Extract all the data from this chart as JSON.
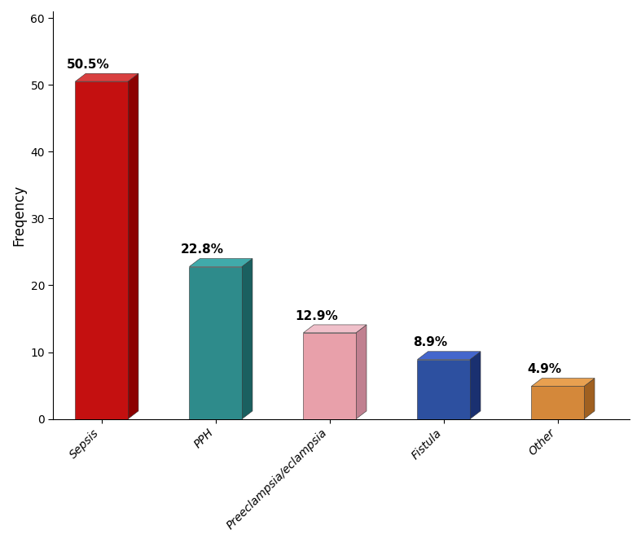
{
  "categories": [
    "Sepsis",
    "PPH",
    "Preeclampsia/eclampsia",
    "Fistula",
    "Other"
  ],
  "values": [
    50.5,
    22.8,
    12.9,
    8.9,
    4.9
  ],
  "labels": [
    "50.5%",
    "22.8%",
    "12.9%",
    "8.9%",
    "4.9%"
  ],
  "bar_colors_front": [
    "#c41010",
    "#2e8b8b",
    "#e8a0aa",
    "#2d50a0",
    "#d4883a"
  ],
  "bar_colors_top": [
    "#d94040",
    "#40aaaa",
    "#f0c0ca",
    "#4466cc",
    "#e8a050"
  ],
  "bar_colors_side": [
    "#8b0000",
    "#1a6060",
    "#c08090",
    "#1a3070",
    "#a06020"
  ],
  "ylabel": "Freqency",
  "ylim": [
    0,
    60
  ],
  "yticks": [
    0,
    10,
    20,
    30,
    40,
    50,
    60
  ],
  "bar_width": 0.6,
  "ox": 0.12,
  "oy": 1.2,
  "label_fontsize": 11,
  "tick_fontsize": 10,
  "ylabel_fontsize": 12
}
